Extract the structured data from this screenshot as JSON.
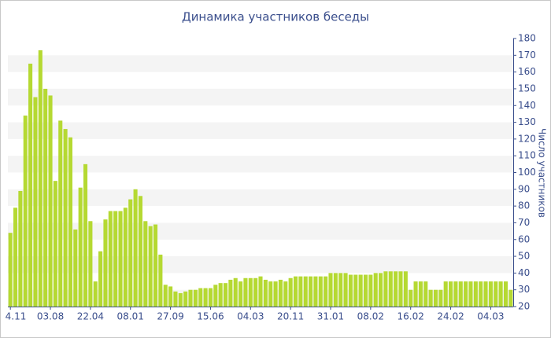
{
  "chart_data": {
    "type": "bar",
    "title": "Динамика участников беседы",
    "y_axis_label": "Число участников",
    "categories": [
      "4.11",
      null,
      null,
      null,
      null,
      null,
      null,
      null,
      "03.08",
      null,
      null,
      null,
      null,
      null,
      null,
      null,
      "22.04",
      null,
      null,
      null,
      null,
      null,
      null,
      null,
      "08.01",
      null,
      null,
      null,
      null,
      null,
      null,
      null,
      "27.09",
      null,
      null,
      null,
      null,
      null,
      null,
      null,
      "15.06",
      null,
      null,
      null,
      null,
      null,
      null,
      null,
      "04.03",
      null,
      null,
      null,
      null,
      null,
      null,
      null,
      "20.11",
      null,
      null,
      null,
      null,
      null,
      null,
      null,
      "31.01",
      null,
      null,
      null,
      null,
      null,
      null,
      null,
      "08.02",
      null,
      null,
      null,
      null,
      null,
      null,
      null,
      "16.02",
      null,
      null,
      null,
      null,
      null,
      null,
      null,
      "24.02",
      null,
      null,
      null,
      null,
      null,
      null,
      null,
      "04.03",
      null,
      null,
      null,
      null
    ],
    "values": [
      64,
      79,
      89,
      134,
      165,
      145,
      173,
      150,
      146,
      95,
      131,
      126,
      121,
      66,
      91,
      105,
      71,
      35,
      53,
      72,
      77,
      77,
      77,
      79,
      84,
      90,
      86,
      71,
      68,
      69,
      51,
      33,
      32,
      29,
      28,
      29,
      30,
      30,
      31,
      31,
      31,
      33,
      34,
      34,
      36,
      37,
      35,
      37,
      37,
      37,
      38,
      36,
      35,
      35,
      36,
      35,
      37,
      38,
      38,
      38,
      38,
      38,
      38,
      38,
      40,
      40,
      40,
      40,
      39,
      39,
      39,
      39,
      39,
      40,
      40,
      41,
      41,
      41,
      41,
      41,
      30,
      35,
      35,
      35,
      30,
      30,
      30,
      35,
      35,
      35,
      35,
      35,
      35,
      35,
      35,
      35,
      35,
      35,
      35,
      35,
      30
    ],
    "color": "#b5d932",
    "ylim": [
      20,
      180
    ],
    "yticks": [
      20,
      30,
      40,
      50,
      60,
      70,
      80,
      90,
      100,
      110,
      120,
      130,
      140,
      150,
      160,
      170,
      180
    ],
    "grid": true
  }
}
